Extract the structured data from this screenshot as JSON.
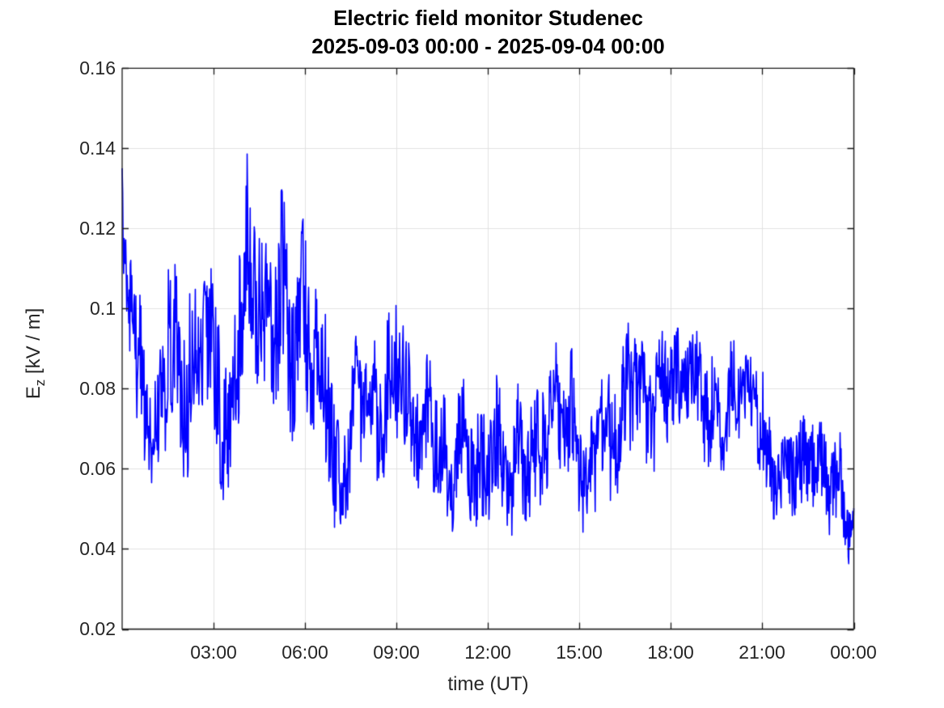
{
  "chart": {
    "title": "Electric field monitor Studenec",
    "subtitle": "2025-09-03 00:00 - 2025-09-04 00:00",
    "xlabel": "time (UT)",
    "ylabel_e": "E",
    "ylabel_sub": "z",
    "ylabel_units": " [kV / m]"
  },
  "chart_data": {
    "type": "line",
    "title": "Electric field monitor Studenec",
    "subtitle": "2025-09-03 00:00 - 2025-09-04 00:00",
    "xlabel": "time (UT)",
    "ylabel": "E_z [kV / m]",
    "xlim_hours": [
      0,
      24
    ],
    "ylim": [
      0.02,
      0.16
    ],
    "grid": true,
    "legend": "none",
    "line_color": "#0000ff",
    "grid_color": "#e2e2e2",
    "axis_color": "#1a1a1a",
    "background": "#ffffff",
    "x_tick_hours": [
      3,
      6,
      9,
      12,
      15,
      18,
      21,
      24
    ],
    "x_tick_labels": [
      "03:00",
      "06:00",
      "09:00",
      "12:00",
      "15:00",
      "18:00",
      "21:00",
      "00:00"
    ],
    "y_tick_values": [
      0.16,
      0.14,
      0.12,
      0.1,
      0.08,
      0.06,
      0.04,
      0.02
    ],
    "y_tick_labels": [
      "0.16",
      "0.14",
      "0.12",
      "0.1",
      "0.08",
      "0.06",
      "0.04",
      "0.02"
    ],
    "values_estimated_from_plot": true,
    "series": [
      {
        "name": "Ez",
        "units": "kV/m",
        "sample_step_hours": 0.25,
        "x_hours": [
          0,
          0.25,
          0.5,
          0.75,
          1,
          1.25,
          1.5,
          1.75,
          2,
          2.25,
          2.5,
          2.75,
          3,
          3.25,
          3.5,
          3.75,
          4,
          4.25,
          4.5,
          4.75,
          5,
          5.25,
          5.5,
          5.75,
          6,
          6.25,
          6.5,
          6.75,
          7,
          7.25,
          7.5,
          7.75,
          8,
          8.25,
          8.5,
          8.75,
          9,
          9.25,
          9.5,
          9.75,
          10,
          10.25,
          10.5,
          10.75,
          11,
          11.25,
          11.5,
          11.75,
          12,
          12.25,
          12.5,
          12.75,
          13,
          13.25,
          13.5,
          13.75,
          14,
          14.25,
          14.5,
          14.75,
          15,
          15.25,
          15.5,
          15.75,
          16,
          16.25,
          16.5,
          16.75,
          17,
          17.25,
          17.5,
          17.75,
          18,
          18.25,
          18.5,
          18.75,
          19,
          19.25,
          19.5,
          19.75,
          20,
          20.25,
          20.5,
          20.75,
          21,
          21.25,
          21.5,
          21.75,
          22,
          22.25,
          22.5,
          22.75,
          23,
          23.25,
          23.5,
          23.75,
          24
        ],
        "mean": [
          0.115,
          0.105,
          0.09,
          0.075,
          0.068,
          0.075,
          0.095,
          0.09,
          0.075,
          0.085,
          0.085,
          0.1,
          0.085,
          0.075,
          0.065,
          0.09,
          0.115,
          0.11,
          0.105,
          0.1,
          0.1,
          0.105,
          0.09,
          0.095,
          0.1,
          0.09,
          0.085,
          0.08,
          0.055,
          0.055,
          0.07,
          0.08,
          0.075,
          0.075,
          0.07,
          0.08,
          0.085,
          0.08,
          0.072,
          0.07,
          0.075,
          0.072,
          0.065,
          0.055,
          0.065,
          0.068,
          0.06,
          0.058,
          0.062,
          0.068,
          0.06,
          0.058,
          0.068,
          0.062,
          0.058,
          0.068,
          0.068,
          0.075,
          0.068,
          0.072,
          0.062,
          0.055,
          0.065,
          0.072,
          0.068,
          0.072,
          0.078,
          0.082,
          0.078,
          0.072,
          0.075,
          0.08,
          0.082,
          0.08,
          0.085,
          0.082,
          0.078,
          0.075,
          0.07,
          0.075,
          0.078,
          0.08,
          0.082,
          0.078,
          0.07,
          0.06,
          0.057,
          0.058,
          0.06,
          0.062,
          0.06,
          0.063,
          0.058,
          0.055,
          0.06,
          0.047,
          0.043
        ],
        "noise_halfband": [
          0.02,
          0.018,
          0.02,
          0.015,
          0.012,
          0.015,
          0.03,
          0.02,
          0.02,
          0.025,
          0.02,
          0.02,
          0.02,
          0.02,
          0.02,
          0.025,
          0.026,
          0.025,
          0.025,
          0.022,
          0.025,
          0.025,
          0.027,
          0.02,
          0.025,
          0.02,
          0.02,
          0.02,
          0.018,
          0.015,
          0.018,
          0.018,
          0.015,
          0.018,
          0.015,
          0.02,
          0.022,
          0.018,
          0.015,
          0.015,
          0.018,
          0.018,
          0.015,
          0.018,
          0.015,
          0.015,
          0.015,
          0.015,
          0.015,
          0.018,
          0.015,
          0.016,
          0.018,
          0.015,
          0.018,
          0.016,
          0.015,
          0.02,
          0.016,
          0.018,
          0.015,
          0.014,
          0.016,
          0.018,
          0.016,
          0.018,
          0.018,
          0.015,
          0.015,
          0.015,
          0.015,
          0.015,
          0.014,
          0.015,
          0.012,
          0.015,
          0.015,
          0.015,
          0.015,
          0.015,
          0.014,
          0.012,
          0.01,
          0.012,
          0.015,
          0.012,
          0.01,
          0.01,
          0.012,
          0.012,
          0.012,
          0.013,
          0.012,
          0.012,
          0.012,
          0.01,
          0.008
        ]
      }
    ]
  }
}
